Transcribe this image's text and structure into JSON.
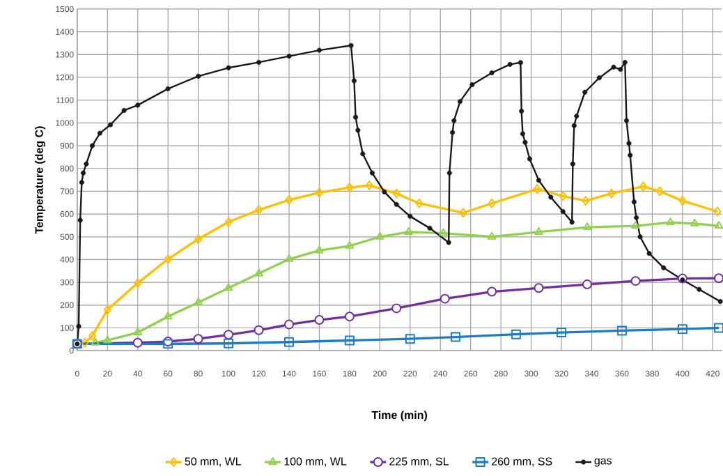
{
  "chart_data": {
    "type": "line",
    "xlabel": "Time (min)",
    "ylabel": "Temperature (deg C)",
    "xlim": [
      0,
      426
    ],
    "ylim": [
      0,
      1500
    ],
    "xticks": [
      0,
      20,
      40,
      60,
      80,
      100,
      120,
      140,
      160,
      180,
      200,
      220,
      240,
      260,
      280,
      300,
      320,
      340,
      360,
      380,
      400,
      420
    ],
    "yticks": [
      0,
      100,
      200,
      300,
      400,
      500,
      600,
      700,
      800,
      900,
      1000,
      1100,
      1200,
      1300,
      1400,
      1500
    ],
    "grid": true,
    "legend": "bottom",
    "series": [
      {
        "name": "50 mm, WL",
        "color": "#ffc000",
        "marker": "diamond",
        "x": [
          5,
          10,
          20,
          40,
          60,
          80,
          100,
          120,
          140,
          160,
          180,
          193,
          211,
          226,
          255,
          274,
          304,
          321,
          336,
          353,
          374,
          385,
          400,
          423
        ],
        "values": [
          35,
          65,
          180,
          297,
          402,
          490,
          565,
          618,
          662,
          694,
          716,
          726,
          690,
          647,
          605,
          647,
          710,
          679,
          658,
          690,
          721,
          700,
          658,
          611
        ]
      },
      {
        "name": "100 mm, WL",
        "color": "#92d050",
        "marker": "triangle",
        "x": [
          12,
          20,
          40,
          60,
          80,
          100,
          120,
          140,
          160,
          180,
          200,
          219,
          242,
          274,
          305,
          337,
          369,
          392,
          408,
          424
        ],
        "values": [
          35,
          45,
          80,
          150,
          212,
          275,
          339,
          402,
          440,
          460,
          500,
          521,
          516,
          500,
          521,
          542,
          548,
          563,
          558,
          548
        ]
      },
      {
        "name": "225 mm, SL",
        "color": "#7030a0",
        "marker": "circle",
        "x": [
          0,
          40,
          60,
          80,
          100,
          120,
          140,
          160,
          180,
          211,
          243,
          274,
          305,
          337,
          369,
          400,
          424
        ],
        "values": [
          30,
          35,
          40,
          52,
          70,
          90,
          115,
          135,
          150,
          186,
          228,
          259,
          275,
          291,
          306,
          317,
          318
        ]
      },
      {
        "name": "260 mm, SS",
        "color": "#1f7bc4",
        "marker": "square",
        "x": [
          0,
          60,
          100,
          140,
          180,
          220,
          250,
          290,
          320,
          360,
          400,
          424
        ],
        "values": [
          30,
          30,
          32,
          38,
          45,
          52,
          60,
          72,
          80,
          88,
          95,
          100
        ]
      },
      {
        "name": "gas",
        "color": "#1a1a1a",
        "marker": "circle",
        "x": [
          0,
          1,
          2,
          3,
          4,
          6,
          10,
          15,
          22,
          31,
          40,
          60,
          80,
          100,
          120,
          140,
          160,
          181,
          183,
          184,
          185.5,
          188.7,
          195,
          203,
          211,
          220,
          233,
          245.5,
          246,
          248,
          249,
          253,
          261,
          274,
          286,
          293,
          293.6,
          294.4,
          296,
          299,
          305,
          313,
          321,
          327,
          327.5,
          328.4,
          330,
          335.5,
          345,
          354.5,
          359,
          362,
          363,
          364.6,
          365.4,
          368,
          369.5,
          372,
          378,
          387.5,
          400,
          411,
          425
        ],
        "values": [
          30,
          107,
          573,
          739,
          780,
          820,
          900,
          955,
          992,
          1055,
          1078,
          1150,
          1205,
          1242,
          1266,
          1293,
          1319,
          1340,
          1185,
          1025,
          968,
          864,
          780,
          697,
          642,
          590,
          538,
          475,
          780,
          958,
          1010,
          1094,
          1168,
          1220,
          1257,
          1265,
          1052,
          952,
          915,
          842,
          748,
          674,
          611,
          564,
          820,
          988,
          1030,
          1135,
          1198,
          1245,
          1235,
          1266,
          1010,
          910,
          858,
          653,
          584,
          500,
          427,
          364,
          311,
          269,
          216
        ]
      }
    ]
  }
}
